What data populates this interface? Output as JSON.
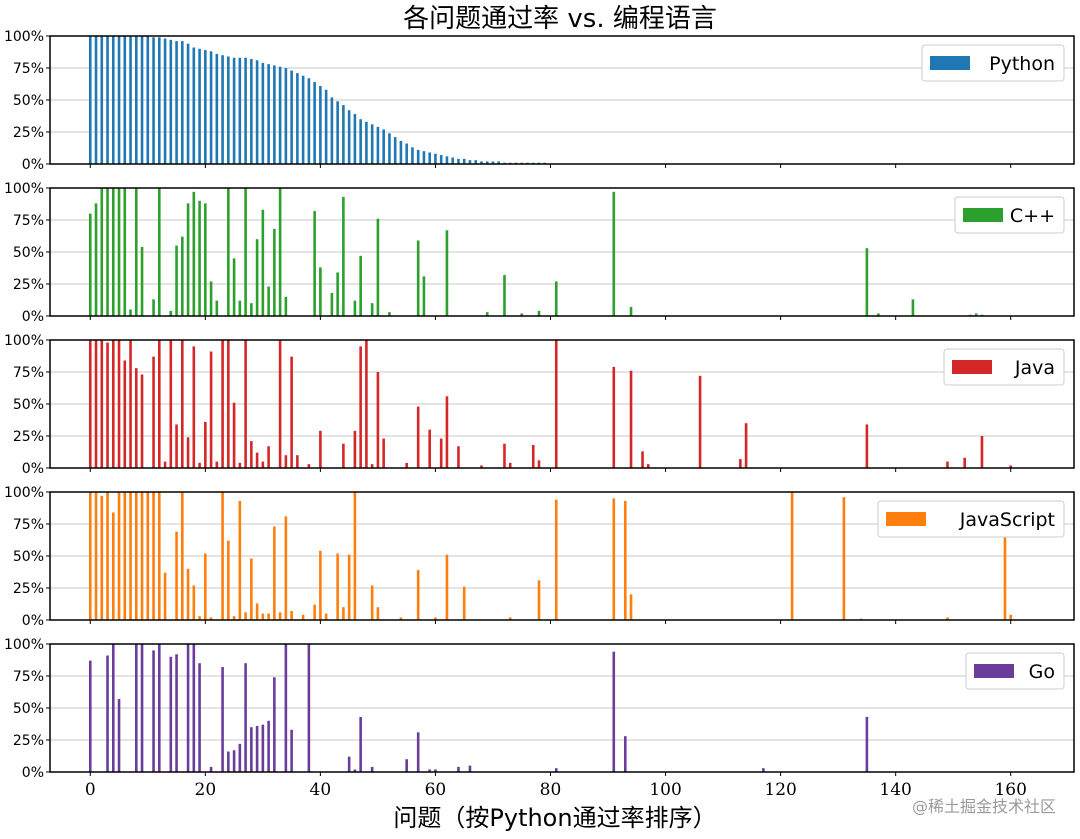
{
  "chart_data": {
    "type": "bar",
    "title": "各问题通过率 vs. 编程语言",
    "xlabel": "问题（按Python通过率排序）",
    "xlim": [
      -7,
      171
    ],
    "x_ticks": [
      0,
      20,
      40,
      60,
      80,
      100,
      120,
      140,
      160
    ],
    "y_ticks": [
      "0%",
      "25%",
      "50%",
      "75%",
      "100%"
    ],
    "ylim": [
      0,
      100
    ],
    "grid": "horizontal",
    "legend_position": "top-right",
    "subplots": [
      {
        "name": "Python",
        "color": "#1f77b4",
        "values": [
          100,
          100,
          100,
          100,
          100,
          100,
          100,
          100,
          100,
          100,
          100,
          99,
          99,
          98,
          97,
          96,
          96,
          94,
          91,
          90,
          89,
          88,
          86,
          85,
          84,
          83,
          83,
          83,
          82,
          81,
          79,
          78,
          77,
          76,
          75,
          73,
          71,
          69,
          67,
          64,
          61,
          58,
          52,
          49,
          46,
          42,
          39,
          35,
          33,
          31,
          29,
          27,
          24,
          21,
          18,
          16,
          13,
          11,
          10,
          9,
          8,
          7,
          6,
          5,
          4,
          4,
          3,
          3,
          2,
          2,
          2,
          2,
          1,
          1,
          1,
          1,
          1,
          1,
          1,
          1
        ]
      },
      {
        "name": "C++",
        "color": "#2ca02c",
        "points": [
          [
            0,
            80
          ],
          [
            1,
            88
          ],
          [
            2,
            100
          ],
          [
            3,
            100
          ],
          [
            4,
            100
          ],
          [
            5,
            100
          ],
          [
            6,
            100
          ],
          [
            7,
            5
          ],
          [
            8,
            100
          ],
          [
            9,
            54
          ],
          [
            11,
            13
          ],
          [
            12,
            100
          ],
          [
            14,
            4
          ],
          [
            15,
            55
          ],
          [
            16,
            62
          ],
          [
            17,
            88
          ],
          [
            18,
            97
          ],
          [
            19,
            90
          ],
          [
            20,
            88
          ],
          [
            21,
            27
          ],
          [
            22,
            12
          ],
          [
            24,
            100
          ],
          [
            25,
            45
          ],
          [
            26,
            12
          ],
          [
            27,
            100
          ],
          [
            28,
            10
          ],
          [
            29,
            60
          ],
          [
            30,
            83
          ],
          [
            31,
            23
          ],
          [
            32,
            68
          ],
          [
            33,
            100
          ],
          [
            34,
            15
          ],
          [
            39,
            82
          ],
          [
            40,
            38
          ],
          [
            42,
            18
          ],
          [
            43,
            34
          ],
          [
            44,
            93
          ],
          [
            46,
            12
          ],
          [
            47,
            47
          ],
          [
            49,
            10
          ],
          [
            50,
            76
          ],
          [
            52,
            3
          ],
          [
            57,
            59
          ],
          [
            58,
            31
          ],
          [
            62,
            67
          ],
          [
            69,
            3
          ],
          [
            72,
            32
          ],
          [
            75,
            2
          ],
          [
            78,
            4
          ],
          [
            81,
            27
          ],
          [
            91,
            97
          ],
          [
            94,
            7
          ],
          [
            135,
            53
          ],
          [
            137,
            2
          ],
          [
            143,
            13
          ],
          [
            153,
            1
          ],
          [
            154,
            2
          ],
          [
            155,
            1
          ]
        ]
      },
      {
        "name": "Java",
        "color": "#d62728",
        "points": [
          [
            0,
            100
          ],
          [
            1,
            100
          ],
          [
            2,
            100
          ],
          [
            3,
            98
          ],
          [
            4,
            100
          ],
          [
            5,
            100
          ],
          [
            6,
            84
          ],
          [
            7,
            100
          ],
          [
            8,
            78
          ],
          [
            9,
            73
          ],
          [
            11,
            87
          ],
          [
            12,
            100
          ],
          [
            13,
            5
          ],
          [
            14,
            100
          ],
          [
            15,
            34
          ],
          [
            16,
            100
          ],
          [
            17,
            24
          ],
          [
            18,
            95
          ],
          [
            19,
            4
          ],
          [
            20,
            36
          ],
          [
            21,
            91
          ],
          [
            22,
            5
          ],
          [
            23,
            100
          ],
          [
            24,
            100
          ],
          [
            25,
            51
          ],
          [
            26,
            4
          ],
          [
            27,
            100
          ],
          [
            28,
            21
          ],
          [
            29,
            12
          ],
          [
            30,
            5
          ],
          [
            31,
            17
          ],
          [
            33,
            100
          ],
          [
            34,
            10
          ],
          [
            35,
            87
          ],
          [
            36,
            10
          ],
          [
            38,
            3
          ],
          [
            40,
            29
          ],
          [
            44,
            19
          ],
          [
            46,
            29
          ],
          [
            47,
            95
          ],
          [
            48,
            100
          ],
          [
            49,
            3
          ],
          [
            50,
            75
          ],
          [
            51,
            23
          ],
          [
            55,
            4
          ],
          [
            57,
            48
          ],
          [
            59,
            30
          ],
          [
            61,
            23
          ],
          [
            62,
            56
          ],
          [
            64,
            17
          ],
          [
            68,
            2
          ],
          [
            72,
            19
          ],
          [
            73,
            4
          ],
          [
            77,
            18
          ],
          [
            78,
            6
          ],
          [
            81,
            100
          ],
          [
            91,
            79
          ],
          [
            94,
            76
          ],
          [
            96,
            13
          ],
          [
            97,
            3
          ],
          [
            106,
            72
          ],
          [
            113,
            7
          ],
          [
            114,
            35
          ],
          [
            135,
            34
          ],
          [
            149,
            5
          ],
          [
            152,
            8
          ],
          [
            155,
            25
          ],
          [
            160,
            2
          ]
        ]
      },
      {
        "name": "JavaScript",
        "color": "#ff7f0e",
        "points": [
          [
            0,
            100
          ],
          [
            1,
            100
          ],
          [
            2,
            97
          ],
          [
            3,
            100
          ],
          [
            4,
            84
          ],
          [
            5,
            100
          ],
          [
            6,
            100
          ],
          [
            7,
            100
          ],
          [
            8,
            100
          ],
          [
            9,
            100
          ],
          [
            10,
            100
          ],
          [
            11,
            100
          ],
          [
            12,
            100
          ],
          [
            13,
            37
          ],
          [
            15,
            69
          ],
          [
            16,
            100
          ],
          [
            17,
            40
          ],
          [
            18,
            27
          ],
          [
            19,
            3
          ],
          [
            20,
            52
          ],
          [
            21,
            2
          ],
          [
            23,
            100
          ],
          [
            24,
            62
          ],
          [
            25,
            3
          ],
          [
            26,
            93
          ],
          [
            27,
            6
          ],
          [
            28,
            48
          ],
          [
            29,
            13
          ],
          [
            30,
            5
          ],
          [
            31,
            5
          ],
          [
            32,
            73
          ],
          [
            33,
            6
          ],
          [
            34,
            81
          ],
          [
            35,
            7
          ],
          [
            37,
            4
          ],
          [
            39,
            12
          ],
          [
            40,
            54
          ],
          [
            41,
            5
          ],
          [
            43,
            52
          ],
          [
            44,
            10
          ],
          [
            45,
            51
          ],
          [
            46,
            100
          ],
          [
            49,
            27
          ],
          [
            50,
            10
          ],
          [
            54,
            2
          ],
          [
            57,
            39
          ],
          [
            60,
            2
          ],
          [
            62,
            51
          ],
          [
            65,
            26
          ],
          [
            73,
            2
          ],
          [
            78,
            31
          ],
          [
            81,
            94
          ],
          [
            91,
            95
          ],
          [
            93,
            93
          ],
          [
            94,
            20
          ],
          [
            122,
            100
          ],
          [
            131,
            96
          ],
          [
            134,
            1
          ],
          [
            149,
            2
          ],
          [
            159,
            66
          ],
          [
            160,
            4
          ]
        ]
      },
      {
        "name": "Go",
        "color": "#6a3d9a",
        "points": [
          [
            0,
            87
          ],
          [
            3,
            91
          ],
          [
            4,
            100
          ],
          [
            5,
            57
          ],
          [
            8,
            100
          ],
          [
            9,
            100
          ],
          [
            11,
            95
          ],
          [
            12,
            100
          ],
          [
            14,
            90
          ],
          [
            15,
            92
          ],
          [
            17,
            100
          ],
          [
            18,
            100
          ],
          [
            19,
            85
          ],
          [
            21,
            4
          ],
          [
            23,
            82
          ],
          [
            24,
            16
          ],
          [
            25,
            17
          ],
          [
            26,
            22
          ],
          [
            27,
            85
          ],
          [
            28,
            35
          ],
          [
            29,
            36
          ],
          [
            30,
            37
          ],
          [
            31,
            40
          ],
          [
            32,
            74
          ],
          [
            34,
            100
          ],
          [
            35,
            33
          ],
          [
            38,
            100
          ],
          [
            45,
            12
          ],
          [
            46,
            2
          ],
          [
            47,
            43
          ],
          [
            49,
            4
          ],
          [
            55,
            10
          ],
          [
            57,
            31
          ],
          [
            59,
            2
          ],
          [
            60,
            2
          ],
          [
            64,
            4
          ],
          [
            66,
            5
          ],
          [
            81,
            3
          ],
          [
            91,
            94
          ],
          [
            93,
            28
          ],
          [
            117,
            3
          ],
          [
            135,
            43
          ]
        ]
      }
    ]
  },
  "watermark": "@稀土掘金技术社区"
}
